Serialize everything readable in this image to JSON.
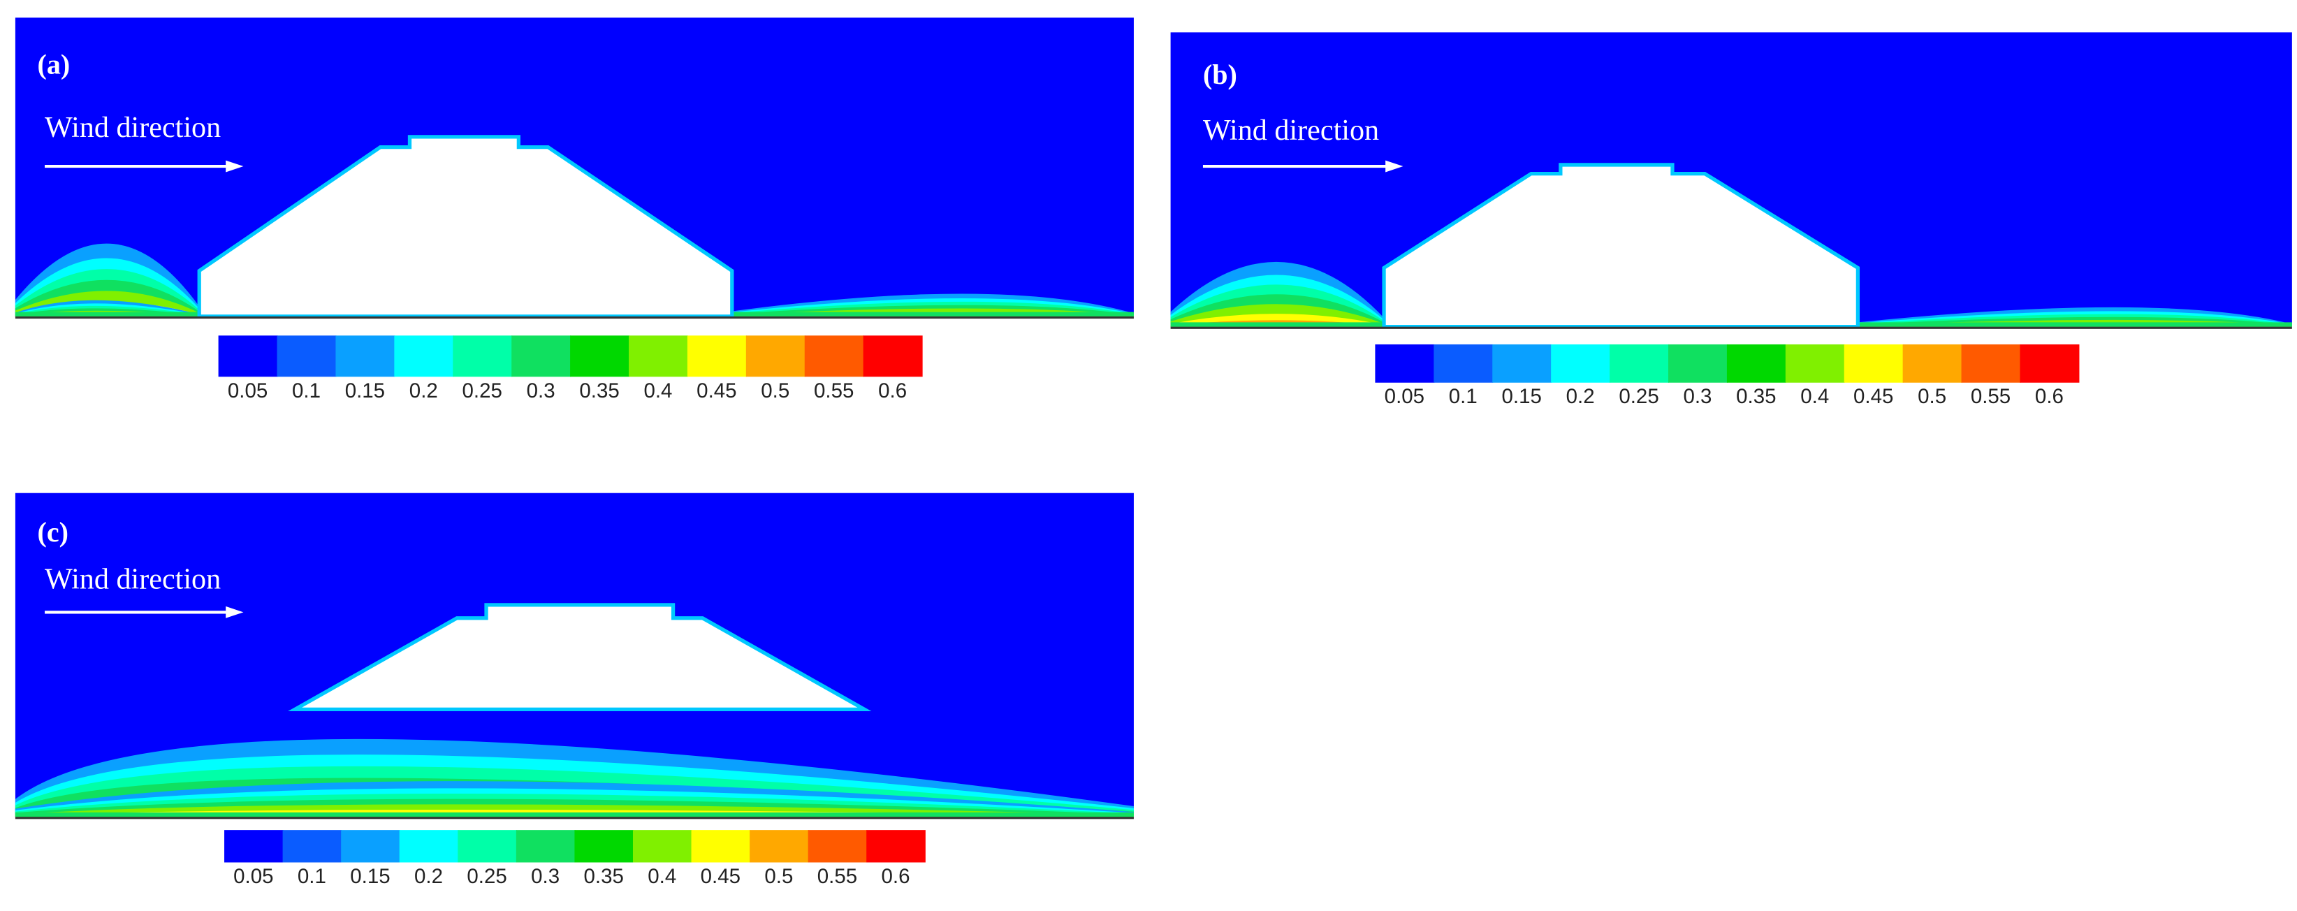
{
  "panels": [
    {
      "label": "(a)",
      "wind_label": "Wind direction",
      "colorbar": {
        "colors": [
          "#0000ff",
          "#0a5cff",
          "#0aa0ff",
          "#00ffff",
          "#00ffa8",
          "#10e060",
          "#00d800",
          "#80f000",
          "#ffff00",
          "#ffa800",
          "#ff5a00",
          "#ff0000"
        ],
        "ticks": [
          0.05,
          0.1,
          0.15,
          0.2,
          0.25,
          0.3,
          0.35,
          0.4,
          0.45,
          0.5,
          0.55,
          0.6
        ]
      }
    },
    {
      "label": "(b)",
      "wind_label": "Wind direction",
      "colorbar": {
        "colors": [
          "#0000ff",
          "#0a5cff",
          "#0aa0ff",
          "#00ffff",
          "#00ffa8",
          "#10e060",
          "#00d800",
          "#80f000",
          "#ffff00",
          "#ffa800",
          "#ff5a00",
          "#ff0000"
        ],
        "ticks": [
          0.05,
          0.1,
          0.15,
          0.2,
          0.25,
          0.3,
          0.35,
          0.4,
          0.45,
          0.5,
          0.55,
          0.6
        ]
      }
    },
    {
      "label": "(c)",
      "wind_label": "Wind direction",
      "colorbar": {
        "colors": [
          "#0000ff",
          "#0a5cff",
          "#0aa0ff",
          "#00ffff",
          "#00ffa8",
          "#10e060",
          "#00d800",
          "#80f000",
          "#ffff00",
          "#ffa800",
          "#ff5a00",
          "#ff0000"
        ],
        "ticks": [
          0.05,
          0.1,
          0.15,
          0.2,
          0.25,
          0.3,
          0.35,
          0.4,
          0.45,
          0.5,
          0.55,
          0.6
        ]
      }
    }
  ]
}
